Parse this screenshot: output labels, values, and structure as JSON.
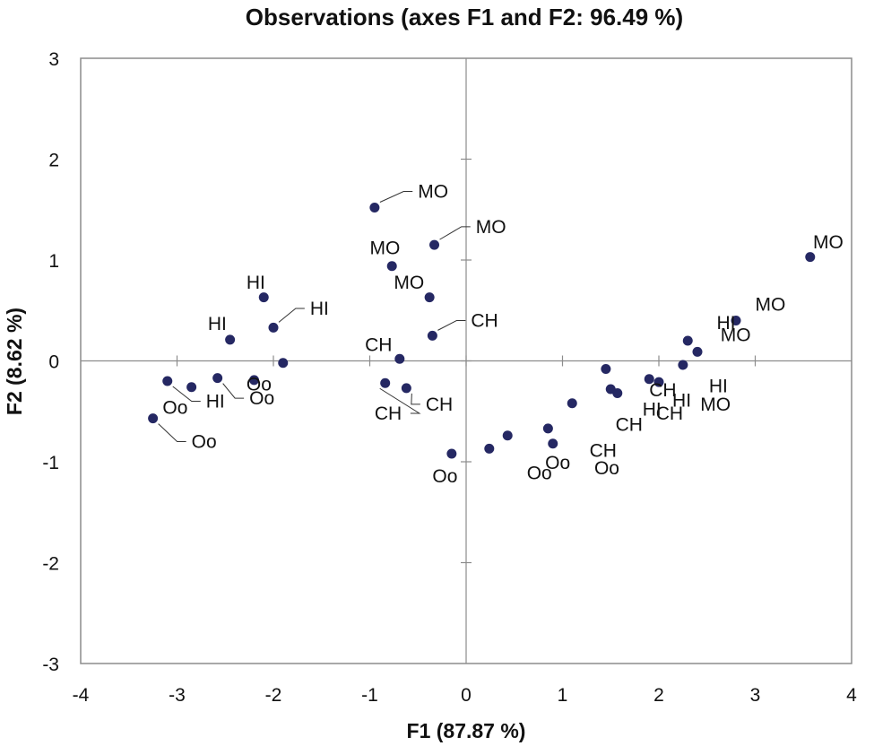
{
  "chart_data": {
    "type": "scatter",
    "title": "Observations (axes F1 and F2: 96.49 %)",
    "xlabel": "F1 (87.87 %)",
    "ylabel": "F2 (8.62 %)",
    "xlim": [
      -4,
      4
    ],
    "ylim": [
      -3,
      3
    ],
    "x_ticks": [
      -4,
      -3,
      -2,
      -1,
      0,
      1,
      2,
      3,
      4
    ],
    "y_ticks": [
      -3,
      -2,
      -1,
      0,
      1,
      2,
      3
    ],
    "grid": false,
    "colors": {
      "point": "#252863",
      "frame": "#8c8c8c",
      "leader": "#333333"
    },
    "points": [
      {
        "x": -0.95,
        "y": 1.52,
        "label": "MO",
        "lx": -0.5,
        "ly": 1.68,
        "leader": true
      },
      {
        "x": -0.33,
        "y": 1.15,
        "label": "MO",
        "lx": 0.1,
        "ly": 1.33,
        "leader": true
      },
      {
        "x": -0.77,
        "y": 0.94,
        "label": "MO",
        "lx": -1.0,
        "ly": 1.12,
        "leader": false
      },
      {
        "x": -0.38,
        "y": 0.63,
        "label": "MO",
        "lx": -0.75,
        "ly": 0.78,
        "leader": false
      },
      {
        "x": -0.35,
        "y": 0.25,
        "label": "CH",
        "lx": 0.05,
        "ly": 0.4,
        "leader": true
      },
      {
        "x": -0.69,
        "y": 0.02,
        "label": "CH",
        "lx": -1.05,
        "ly": 0.16,
        "leader": false
      },
      {
        "x": -0.84,
        "y": -0.22,
        "label": "CH",
        "lx": -0.95,
        "ly": -0.52,
        "leader": true
      },
      {
        "x": -0.62,
        "y": -0.27,
        "label": "CH",
        "lx": -0.42,
        "ly": -0.43,
        "leader": true
      },
      {
        "x": -2.1,
        "y": 0.63,
        "label": "HI",
        "lx": -2.28,
        "ly": 0.78,
        "leader": false
      },
      {
        "x": -2.45,
        "y": 0.21,
        "label": "HI",
        "lx": -2.68,
        "ly": 0.37,
        "leader": false
      },
      {
        "x": -2.0,
        "y": 0.33,
        "label": "HI",
        "lx": -1.62,
        "ly": 0.52,
        "leader": true
      },
      {
        "x": -1.9,
        "y": -0.02,
        "label": null
      },
      {
        "x": -3.1,
        "y": -0.2,
        "label": "HI",
        "lx": -2.7,
        "ly": -0.4,
        "leader": true
      },
      {
        "x": -2.85,
        "y": -0.26,
        "label": null
      },
      {
        "x": -2.58,
        "y": -0.17,
        "label": "Oo",
        "lx": -2.25,
        "ly": -0.37,
        "leader": true
      },
      {
        "x": -3.25,
        "y": -0.57,
        "label": "Oo",
        "lx": -2.85,
        "ly": -0.8,
        "leader": true
      },
      {
        "x": -2.2,
        "y": -0.19,
        "label": "Oo",
        "lx": -2.28,
        "ly": -0.23,
        "leader": false
      },
      {
        "x": -3.25,
        "y": -0.57,
        "label": "Oo",
        "lx": -3.15,
        "ly": -0.46,
        "leader": false
      },
      {
        "x": -0.15,
        "y": -0.92,
        "label": "Oo",
        "lx": -0.35,
        "ly": -1.14,
        "leader": false
      },
      {
        "x": 0.24,
        "y": -0.87,
        "label": null
      },
      {
        "x": 0.43,
        "y": -0.74,
        "label": null
      },
      {
        "x": 0.85,
        "y": -0.67,
        "label": null
      },
      {
        "x": 0.9,
        "y": -0.82,
        "label": "Oo",
        "lx": 0.82,
        "ly": -1.01,
        "leader": false
      },
      {
        "x": 0.9,
        "y": -0.82,
        "label": "Oo",
        "lx": 0.63,
        "ly": -1.11,
        "leader": false
      },
      {
        "x": 1.1,
        "y": -0.42,
        "label": "Oo",
        "lx": 1.33,
        "ly": -1.06,
        "leader": false
      },
      {
        "x": 1.1,
        "y": -0.42,
        "label": "CH",
        "lx": 1.28,
        "ly": -0.89,
        "leader": false
      },
      {
        "x": 1.1,
        "y": -0.42,
        "label": "CH",
        "lx": 1.55,
        "ly": -0.63,
        "leader": false
      },
      {
        "x": 1.45,
        "y": -0.08,
        "label": null
      },
      {
        "x": 1.5,
        "y": -0.28,
        "label": null
      },
      {
        "x": 1.57,
        "y": -0.32,
        "label": null
      },
      {
        "x": 1.9,
        "y": -0.18,
        "label": "CH",
        "lx": 1.9,
        "ly": -0.29,
        "leader": false
      },
      {
        "x": 2.0,
        "y": -0.21,
        "label": "CH",
        "lx": 1.97,
        "ly": -0.52,
        "leader": false
      },
      {
        "x": 2.0,
        "y": -0.21,
        "label": "HI",
        "lx": 1.83,
        "ly": -0.48,
        "leader": false
      },
      {
        "x": 2.25,
        "y": -0.04,
        "label": "HI",
        "lx": 2.14,
        "ly": -0.39,
        "leader": false
      },
      {
        "x": 2.3,
        "y": 0.2,
        "label": "MO",
        "lx": 2.43,
        "ly": -0.43,
        "leader": false
      },
      {
        "x": 2.4,
        "y": 0.09,
        "label": "HI",
        "lx": 2.52,
        "ly": -0.25,
        "leader": false
      },
      {
        "x": 2.8,
        "y": 0.4,
        "label": "HI",
        "lx": 2.6,
        "ly": 0.38,
        "leader": false
      },
      {
        "x": 2.8,
        "y": 0.4,
        "label": "MO",
        "lx": 2.64,
        "ly": 0.26,
        "leader": false
      },
      {
        "x": 2.8,
        "y": 0.4,
        "label": "MO",
        "lx": 3.0,
        "ly": 0.56,
        "leader": false
      },
      {
        "x": 3.57,
        "y": 1.03,
        "label": "MO",
        "lx": 3.6,
        "ly": 1.18,
        "leader": false
      }
    ]
  }
}
